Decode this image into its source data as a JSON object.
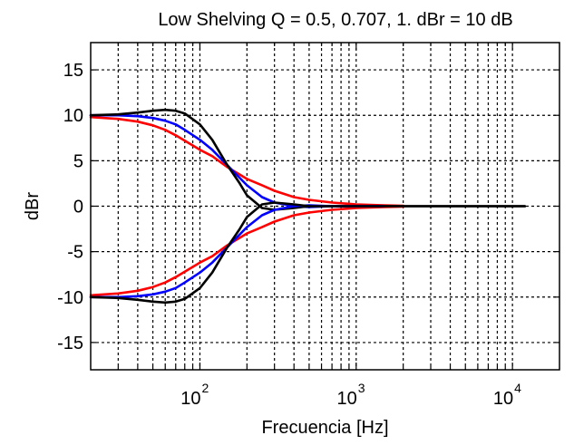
{
  "chart_data": {
    "type": "line",
    "title": "Low Shelving Q = 0.5, 0.707, 1. dBr = 10 dB",
    "xlabel": "Frecuencia [Hz]",
    "ylabel": "dBr",
    "x_scale": "log",
    "xlim": [
      20,
      20000
    ],
    "ylim": [
      -18,
      18
    ],
    "grid": true,
    "legend": "none",
    "xticks": [
      {
        "value": 100,
        "base": "10",
        "exp": "2"
      },
      {
        "value": 1000,
        "base": "10",
        "exp": "3"
      },
      {
        "value": 10000,
        "base": "10",
        "exp": "4"
      }
    ],
    "yticks": [
      {
        "value": 15,
        "label": "15"
      },
      {
        "value": 10,
        "label": "10"
      },
      {
        "value": 5,
        "label": "5"
      },
      {
        "value": 0,
        "label": "0"
      },
      {
        "value": -5,
        "label": "-5"
      },
      {
        "value": -10,
        "label": "-10"
      },
      {
        "value": -15,
        "label": "-15"
      }
    ],
    "series": [
      {
        "color": "#ff0000",
        "x": [
          20,
          30,
          40,
          50,
          60,
          70,
          80,
          100,
          120,
          150,
          200,
          250,
          300,
          400,
          500,
          700,
          1000,
          1500,
          2000
        ],
        "y": [
          9.8,
          9.6,
          9.3,
          8.9,
          8.4,
          7.8,
          7.2,
          6.2,
          5.5,
          4.3,
          3.0,
          2.3,
          1.7,
          1.0,
          0.7,
          0.4,
          0.2,
          0.1,
          0.05
        ]
      },
      {
        "color": "#0000ff",
        "x": [
          20,
          30,
          40,
          50,
          60,
          70,
          80,
          100,
          120,
          150,
          200,
          250,
          300,
          400,
          500,
          700,
          1000,
          1500
        ],
        "y": [
          10.0,
          10.0,
          9.9,
          9.7,
          9.4,
          9.0,
          8.4,
          7.3,
          6.2,
          4.5,
          2.3,
          1.0,
          0.4,
          0.0,
          -0.1,
          0.0,
          0.0,
          0.0
        ]
      },
      {
        "color": "#000000",
        "x": [
          20,
          30,
          40,
          50,
          60,
          70,
          80,
          100,
          120,
          150,
          180,
          200,
          250,
          300,
          400,
          500,
          700,
          1000,
          2000,
          5000,
          12000
        ],
        "y": [
          10.0,
          10.1,
          10.3,
          10.5,
          10.6,
          10.5,
          10.2,
          9.0,
          7.3,
          4.5,
          2.5,
          1.2,
          -0.2,
          -0.4,
          -0.2,
          0.0,
          0.0,
          0.0,
          0.0,
          0.0,
          0.0
        ]
      },
      {
        "color": "#ff0000",
        "x": [
          20,
          30,
          40,
          50,
          60,
          70,
          80,
          100,
          120,
          150,
          200,
          250,
          300,
          400,
          500,
          700,
          1000,
          1500,
          2000
        ],
        "y": [
          -9.8,
          -9.6,
          -9.3,
          -8.9,
          -8.4,
          -7.8,
          -7.2,
          -6.2,
          -5.5,
          -4.3,
          -3.0,
          -2.3,
          -1.7,
          -1.0,
          -0.7,
          -0.4,
          -0.2,
          -0.1,
          -0.05
        ]
      },
      {
        "color": "#0000ff",
        "x": [
          20,
          30,
          40,
          50,
          60,
          70,
          80,
          100,
          120,
          150,
          200,
          250,
          300,
          400,
          500,
          700,
          1000,
          1500
        ],
        "y": [
          -10.0,
          -10.0,
          -9.9,
          -9.7,
          -9.4,
          -9.0,
          -8.4,
          -7.3,
          -6.2,
          -4.5,
          -2.3,
          -1.0,
          -0.4,
          0.0,
          0.1,
          0.0,
          0.0,
          0.0
        ]
      },
      {
        "color": "#000000",
        "x": [
          20,
          30,
          40,
          50,
          60,
          70,
          80,
          100,
          120,
          150,
          180,
          200,
          250,
          300,
          400,
          500,
          700,
          1000,
          2000,
          5000,
          12000
        ],
        "y": [
          -10.0,
          -10.1,
          -10.3,
          -10.5,
          -10.6,
          -10.5,
          -10.2,
          -9.0,
          -7.3,
          -4.5,
          -2.5,
          -1.2,
          0.2,
          0.4,
          0.2,
          0.0,
          0.0,
          0.0,
          0.0,
          0.0,
          0.0
        ]
      }
    ]
  }
}
